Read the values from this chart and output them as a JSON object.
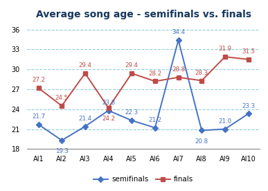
{
  "title": "Average song age - semifinals vs. finals",
  "categories": [
    "AI1",
    "AI2",
    "AI3",
    "AI4",
    "AI5",
    "AI6",
    "AI7",
    "AI8",
    "AI9",
    "AI10"
  ],
  "semifinals": [
    21.7,
    19.3,
    21.4,
    23.8,
    22.3,
    21.2,
    34.4,
    20.8,
    21.0,
    23.3
  ],
  "finals": [
    27.2,
    24.5,
    29.4,
    24.2,
    29.4,
    28.2,
    28.8,
    28.3,
    31.9,
    31.5
  ],
  "semis_color": "#4472C4",
  "finals_color": "#BE4B48",
  "ylim": [
    18,
    37
  ],
  "yticks": [
    18,
    21,
    24,
    27,
    30,
    33,
    36
  ],
  "grid_color": "#92CDDC",
  "background_color": "#FFFFFF",
  "title_color": "#17375E",
  "legend_labels": [
    "semifinals",
    "finals"
  ],
  "semis_offsets": [
    5,
    -8,
    5,
    5,
    5,
    5,
    5,
    -8,
    5,
    5
  ],
  "finals_offsets": [
    5,
    5,
    5,
    -8,
    5,
    5,
    5,
    5,
    5,
    5
  ],
  "semis_va": [
    "bottom",
    "top",
    "bottom",
    "bottom",
    "bottom",
    "bottom",
    "bottom",
    "top",
    "bottom",
    "bottom"
  ],
  "finals_va": [
    "bottom",
    "bottom",
    "bottom",
    "top",
    "bottom",
    "bottom",
    "bottom",
    "bottom",
    "bottom",
    "bottom"
  ]
}
